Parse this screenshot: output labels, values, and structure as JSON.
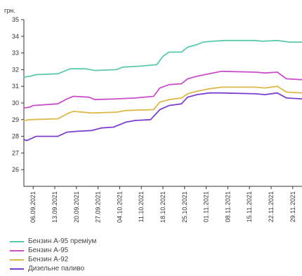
{
  "chart_data": {
    "type": "line",
    "unit_label": "грн.",
    "ylim": [
      25,
      35
    ],
    "y_ticks": [
      26,
      27,
      28,
      29,
      30,
      31,
      32,
      33,
      34,
      35
    ],
    "x_tick_labels": [
      "06.09.2021",
      "13.09.2021",
      "20.09.2021",
      "27.09.2021",
      "04.10.2021",
      "11.10.2021",
      "18.10.2021",
      "25.10.2021",
      "01.11.2021",
      "08.11.2021",
      "15.11.2021",
      "22.11.2021",
      "29.11.2021"
    ],
    "x_range": [
      "2021-09-03",
      "2021-12-02"
    ],
    "grid": false,
    "legend_position": "bottom-left",
    "series": [
      {
        "name": "Бензин А-95 преміум",
        "color": "#5cc9ad",
        "points": [
          [
            "2021-09-03",
            31.55
          ],
          [
            "2021-09-05",
            31.6
          ],
          [
            "2021-09-07",
            31.7
          ],
          [
            "2021-09-14",
            31.75
          ],
          [
            "2021-09-16",
            31.9
          ],
          [
            "2021-09-18",
            32.05
          ],
          [
            "2021-09-23",
            32.05
          ],
          [
            "2021-09-26",
            31.95
          ],
          [
            "2021-10-03",
            32.0
          ],
          [
            "2021-10-05",
            32.15
          ],
          [
            "2021-10-10",
            32.2
          ],
          [
            "2021-10-13",
            32.25
          ],
          [
            "2021-10-16",
            32.3
          ],
          [
            "2021-10-18",
            32.8
          ],
          [
            "2021-10-20",
            33.05
          ],
          [
            "2021-10-24",
            33.05
          ],
          [
            "2021-10-26",
            33.35
          ],
          [
            "2021-10-29",
            33.5
          ],
          [
            "2021-10-31",
            33.65
          ],
          [
            "2021-11-03",
            33.7
          ],
          [
            "2021-11-07",
            33.75
          ],
          [
            "2021-11-17",
            33.75
          ],
          [
            "2021-11-19",
            33.7
          ],
          [
            "2021-11-24",
            33.75
          ],
          [
            "2021-11-28",
            33.65
          ],
          [
            "2021-12-02",
            33.65
          ]
        ]
      },
      {
        "name": "Бензин А-95",
        "color": "#c84fc8",
        "points": [
          [
            "2021-09-03",
            29.7
          ],
          [
            "2021-09-05",
            29.75
          ],
          [
            "2021-09-06",
            29.85
          ],
          [
            "2021-09-14",
            29.95
          ],
          [
            "2021-09-17",
            30.25
          ],
          [
            "2021-09-19",
            30.4
          ],
          [
            "2021-09-24",
            30.35
          ],
          [
            "2021-09-26",
            30.2
          ],
          [
            "2021-10-03",
            30.25
          ],
          [
            "2021-10-09",
            30.3
          ],
          [
            "2021-10-15",
            30.4
          ],
          [
            "2021-10-17",
            30.9
          ],
          [
            "2021-10-20",
            31.1
          ],
          [
            "2021-10-24",
            31.15
          ],
          [
            "2021-10-26",
            31.45
          ],
          [
            "2021-10-29",
            31.6
          ],
          [
            "2021-11-02",
            31.75
          ],
          [
            "2021-11-06",
            31.9
          ],
          [
            "2021-11-17",
            31.85
          ],
          [
            "2021-11-20",
            31.8
          ],
          [
            "2021-11-24",
            31.85
          ],
          [
            "2021-11-27",
            31.45
          ],
          [
            "2021-12-02",
            31.4
          ]
        ]
      },
      {
        "name": "Бензин А-92",
        "color": "#ddb84a",
        "points": [
          [
            "2021-09-03",
            28.95
          ],
          [
            "2021-09-05",
            29.0
          ],
          [
            "2021-09-14",
            29.05
          ],
          [
            "2021-09-17",
            29.35
          ],
          [
            "2021-09-19",
            29.5
          ],
          [
            "2021-09-25",
            29.4
          ],
          [
            "2021-10-03",
            29.45
          ],
          [
            "2021-10-06",
            29.55
          ],
          [
            "2021-10-15",
            29.6
          ],
          [
            "2021-10-17",
            30.05
          ],
          [
            "2021-10-20",
            30.2
          ],
          [
            "2021-10-24",
            30.3
          ],
          [
            "2021-10-26",
            30.55
          ],
          [
            "2021-10-29",
            30.7
          ],
          [
            "2021-11-02",
            30.85
          ],
          [
            "2021-11-06",
            30.95
          ],
          [
            "2021-11-17",
            30.95
          ],
          [
            "2021-11-20",
            30.9
          ],
          [
            "2021-11-24",
            31.0
          ],
          [
            "2021-11-27",
            30.65
          ],
          [
            "2021-12-02",
            30.6
          ]
        ]
      },
      {
        "name": "Дизельне паливо",
        "color": "#7b3fcf",
        "points": [
          [
            "2021-09-03",
            27.8
          ],
          [
            "2021-09-04",
            27.75
          ],
          [
            "2021-09-07",
            28.0
          ],
          [
            "2021-09-14",
            28.0
          ],
          [
            "2021-09-17",
            28.25
          ],
          [
            "2021-09-20",
            28.3
          ],
          [
            "2021-09-25",
            28.35
          ],
          [
            "2021-09-28",
            28.5
          ],
          [
            "2021-10-02",
            28.55
          ],
          [
            "2021-10-06",
            28.85
          ],
          [
            "2021-10-09",
            28.95
          ],
          [
            "2021-10-14",
            29.0
          ],
          [
            "2021-10-17",
            29.6
          ],
          [
            "2021-10-20",
            29.85
          ],
          [
            "2021-10-24",
            29.95
          ],
          [
            "2021-10-26",
            30.35
          ],
          [
            "2021-10-29",
            30.5
          ],
          [
            "2021-11-02",
            30.6
          ],
          [
            "2021-11-06",
            30.6
          ],
          [
            "2021-11-17",
            30.55
          ],
          [
            "2021-11-20",
            30.5
          ],
          [
            "2021-11-24",
            30.6
          ],
          [
            "2021-11-27",
            30.3
          ],
          [
            "2021-12-02",
            30.25
          ]
        ]
      }
    ]
  }
}
